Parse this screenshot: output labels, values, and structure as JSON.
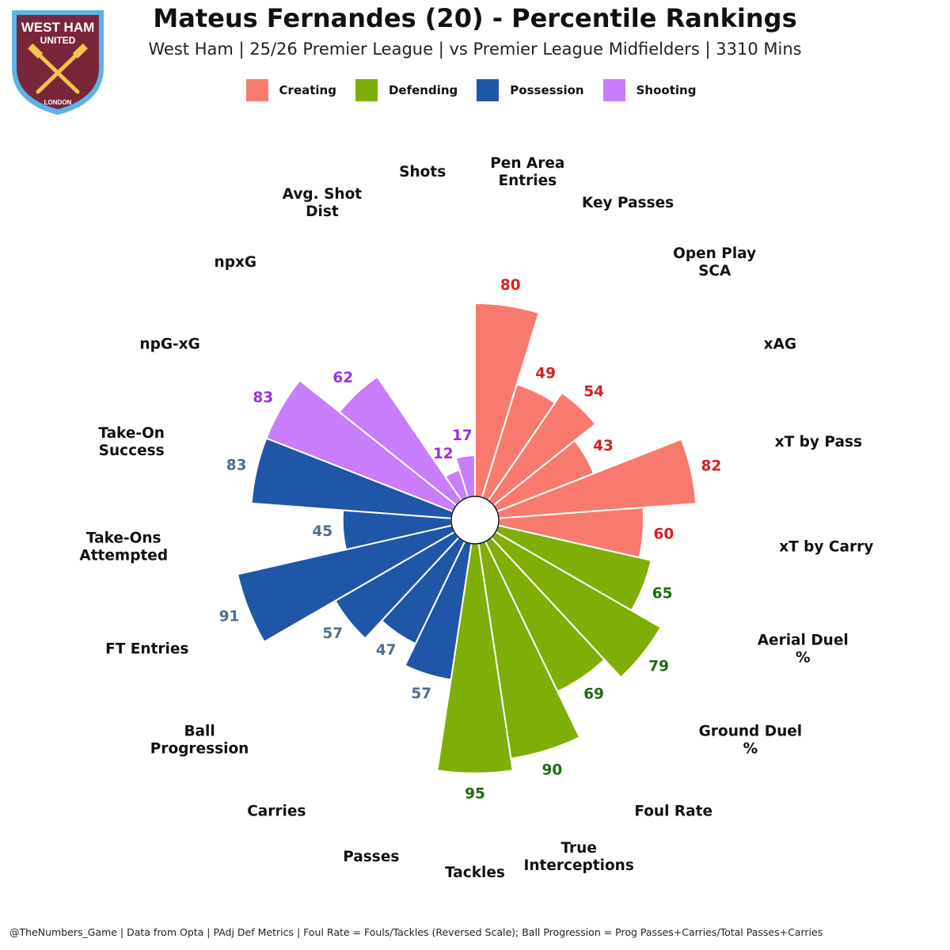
{
  "header": {
    "title": "Mateus Fernandes (20) - Percentile Rankings",
    "subtitle": "West Ham | 25/26 Premier League | vs Premier League Midfielders | 3310 Mins"
  },
  "crest": {
    "top_text": "WEST HAM",
    "mid_text": "UNITED",
    "bottom_text": "LONDON",
    "colors": {
      "claret": "#7a263a",
      "blue": "#5bb3e6",
      "gold": "#f3c64b"
    }
  },
  "legend": [
    {
      "label": "Creating",
      "color": "#f87a6f"
    },
    {
      "label": "Defending",
      "color": "#7fae06"
    },
    {
      "label": "Possession",
      "color": "#1f56a8"
    },
    {
      "label": "Shooting",
      "color": "#c77dfc"
    }
  ],
  "chart_data": {
    "type": "radial-bar",
    "value_range": [
      0,
      100
    ],
    "metrics": [
      {
        "label": "Pen Area Entries",
        "category": "Creating",
        "value": 80
      },
      {
        "label": "Key Passes",
        "category": "Creating",
        "value": 49
      },
      {
        "label": "Open Play SCA",
        "category": "Creating",
        "value": 54
      },
      {
        "label": "xAG",
        "category": "Creating",
        "value": 43
      },
      {
        "label": "xT by Pass",
        "category": "Creating",
        "value": 82
      },
      {
        "label": "xT by Carry",
        "category": "Creating",
        "value": 60
      },
      {
        "label": "Aerial Duel %",
        "category": "Defending",
        "value": 65
      },
      {
        "label": "Ground Duel %",
        "category": "Defending",
        "value": 79
      },
      {
        "label": "Foul Rate",
        "category": "Defending",
        "value": 69
      },
      {
        "label": "True Interceptions",
        "category": "Defending",
        "value": 90
      },
      {
        "label": "Tackles",
        "category": "Defending",
        "value": 95
      },
      {
        "label": "Passes",
        "category": "Possession",
        "value": 57
      },
      {
        "label": "Carries",
        "category": "Possession",
        "value": 47
      },
      {
        "label": "Ball Progression",
        "category": "Possession",
        "value": 57
      },
      {
        "label": "FT Entries",
        "category": "Possession",
        "value": 91
      },
      {
        "label": "Take-Ons Attempted",
        "category": "Possession",
        "value": 45
      },
      {
        "label": "Take-On Success",
        "category": "Possession",
        "value": 83
      },
      {
        "label": "npG-xG",
        "category": "Shooting",
        "value": 83
      },
      {
        "label": "npxG",
        "category": "Shooting",
        "value": 62
      },
      {
        "label": "Avg. Shot Dist",
        "category": "Shooting",
        "value": 12
      },
      {
        "label": "Shots",
        "category": "Shooting",
        "value": 17
      }
    ],
    "value_colors": {
      "Creating": "#d81e1e",
      "Defending": "#1e6b12",
      "Possession": "#4f6f8f",
      "Shooting": "#9b2fe0"
    }
  },
  "footer": "@TheNumbers_Game | Data from Opta | PAdj Def Metrics | Foul Rate = Fouls/Tackles (Reversed Scale); Ball Progression = Prog Passes+Carries/Total Passes+Carries"
}
